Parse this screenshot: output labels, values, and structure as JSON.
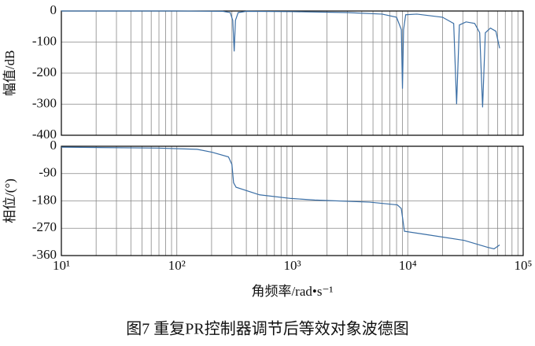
{
  "chart_data": [
    {
      "type": "line",
      "ylabel": "幅值/dB",
      "logx": true,
      "grid": true,
      "minor_grid": true,
      "color": "#3a6ea5",
      "xlim": [
        10,
        100000
      ],
      "ylim": [
        -400,
        0
      ],
      "yticks": [
        -400,
        -300,
        -200,
        -100,
        0
      ],
      "x": [
        10,
        100,
        250,
        290,
        305,
        314,
        322,
        340,
        400,
        1000,
        3000,
        6000,
        8000,
        8800,
        9000,
        9200,
        9600,
        12000,
        20000,
        25000,
        26500,
        28000,
        32000,
        38000,
        42000,
        44500,
        47000,
        52000,
        58000,
        62500
      ],
      "values": [
        0,
        0,
        -1,
        -5,
        -30,
        -130,
        -30,
        -5,
        -1,
        -2,
        -5,
        -10,
        -20,
        -60,
        -250,
        -60,
        -12,
        -10,
        -20,
        -40,
        -300,
        -45,
        -35,
        -40,
        -70,
        -310,
        -70,
        -55,
        -65,
        -120
      ]
    },
    {
      "type": "line",
      "ylabel": "相位/(°)",
      "xlabel": "角频率/rad•s⁻¹",
      "logx": true,
      "grid": true,
      "minor_grid": true,
      "color": "#3a6ea5",
      "xlim": [
        10,
        100000
      ],
      "xticks": [
        {
          "value": 10,
          "label": "10¹"
        },
        {
          "value": 100,
          "label": "10²"
        },
        {
          "value": 1000,
          "label": "10³"
        },
        {
          "value": 10000,
          "label": "10⁴"
        },
        {
          "value": 100000,
          "label": "10⁵"
        }
      ],
      "ylim": [
        -360,
        0
      ],
      "yticks": [
        -360,
        -270,
        -180,
        -90,
        0
      ],
      "x": [
        10,
        68,
        150,
        203,
        280,
        300,
        310,
        326,
        521,
        977,
        1563,
        4690,
        8130,
        8790,
        9360,
        14060,
        30800,
        49300,
        55900,
        62500
      ],
      "values": [
        -3,
        -6,
        -10,
        -20,
        -35,
        -60,
        -120,
        -135,
        -160,
        -172,
        -177,
        -184,
        -193,
        -205,
        -280,
        -290,
        -310,
        -333,
        -338,
        -325
      ]
    }
  ],
  "caption": "图7  重复PR控制器调节后等效对象波德图"
}
